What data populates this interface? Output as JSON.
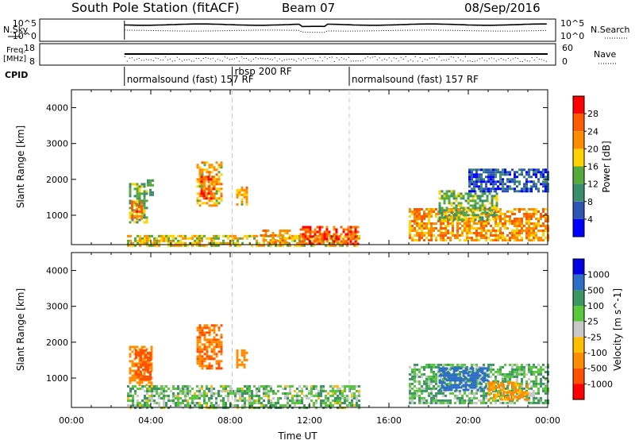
{
  "header": {
    "title": "South Pole Station (fitACF)",
    "beam": "Beam 07",
    "date": "08/Sep/2016"
  },
  "strip": {
    "nsky_label": "N.Sky",
    "nsearch_label": "N.Search",
    "freq_label_1": "Freq.",
    "freq_label_2": "[MHz]",
    "nave_label": "Nave",
    "cpid_label": "CPID",
    "noise_ticks": [
      "10^5",
      "10^0"
    ],
    "freq_ticks": [
      "18",
      "8"
    ],
    "nave_ticks": [
      "60",
      "0"
    ]
  },
  "cpid_segments": [
    {
      "label": "normalsound (fast) 157 RF",
      "start": 2.67
    },
    {
      "label": "rbsp 200 RF",
      "start": 8.1
    },
    {
      "label": "normalsound (fast) 157 RF",
      "start": 14.0
    }
  ],
  "colors": {
    "power": [
      "#0000ff",
      "#2f55b4",
      "#3c8c6e",
      "#55aa3c",
      "#ffd200",
      "#ff8c00",
      "#ff5a00",
      "#ff0000"
    ],
    "velocity": [
      "#0000e0",
      "#2f6ec8",
      "#3c9664",
      "#5ac83c",
      "#c8c8c8",
      "#ffbe00",
      "#ff8c00",
      "#ff5000",
      "#ff0000"
    ]
  },
  "chart_data": [
    {
      "type": "heatmap",
      "name": "power",
      "xlabel": "",
      "ylabel": "Slant Range [km]",
      "xlim": [
        0,
        24
      ],
      "ylim": [
        180,
        4500
      ],
      "yticks": [
        "1000",
        "2000",
        "3000",
        "4000"
      ],
      "colorbar": {
        "label": "Power [dB]",
        "ticks": [
          "4",
          "8",
          "12",
          "16",
          "20",
          "24",
          "28"
        ],
        "range": [
          0,
          32
        ]
      },
      "regions": [
        {
          "t0": 2.9,
          "t1": 3.8,
          "r0": 800,
          "r1": 1900,
          "v": 14
        },
        {
          "t0": 3.0,
          "t1": 3.6,
          "r0": 900,
          "r1": 1400,
          "v": 24
        },
        {
          "t0": 3.8,
          "t1": 4.1,
          "r0": 1600,
          "r1": 2000,
          "v": 10
        },
        {
          "t0": 6.3,
          "t1": 7.6,
          "r0": 1300,
          "r1": 2500,
          "v": 20
        },
        {
          "t0": 6.5,
          "t1": 7.2,
          "r0": 1500,
          "r1": 2100,
          "v": 26
        },
        {
          "t0": 8.3,
          "t1": 8.8,
          "r0": 1300,
          "r1": 1800,
          "v": 20
        },
        {
          "t0": 2.8,
          "t1": 14.5,
          "r0": 180,
          "r1": 450,
          "v": 18
        },
        {
          "t0": 11.5,
          "t1": 14.5,
          "r0": 200,
          "r1": 700,
          "v": 26
        },
        {
          "t0": 9.5,
          "t1": 11.0,
          "r0": 250,
          "r1": 600,
          "v": 22
        },
        {
          "t0": 17.0,
          "t1": 24.0,
          "r0": 300,
          "r1": 1200,
          "v": 22
        },
        {
          "t0": 18.5,
          "t1": 21.5,
          "r0": 900,
          "r1": 1700,
          "v": 14
        },
        {
          "t0": 20.0,
          "t1": 24.0,
          "r0": 1700,
          "r1": 2300,
          "v": 6
        }
      ]
    },
    {
      "type": "heatmap",
      "name": "velocity",
      "xlabel": "Time UT",
      "ylabel": "Slant Range [km]",
      "xlim": [
        0,
        24
      ],
      "ylim": [
        180,
        4500
      ],
      "xticks": [
        "00:00",
        "04:00",
        "08:00",
        "12:00",
        "16:00",
        "20:00",
        "00:00"
      ],
      "yticks": [
        "1000",
        "2000",
        "3000",
        "4000"
      ],
      "colorbar": {
        "label": "Velocity [m s^-1]",
        "ticks": [
          "1000",
          "500",
          "100",
          "25",
          "-25",
          "-100",
          "-500",
          "-1000"
        ]
      },
      "regions": [
        {
          "t0": 2.9,
          "t1": 4.0,
          "r0": 800,
          "r1": 1900,
          "v": -300
        },
        {
          "t0": 3.2,
          "t1": 4.0,
          "r0": 1000,
          "r1": 1800,
          "v": -600
        },
        {
          "t0": 6.3,
          "t1": 7.6,
          "r0": 1300,
          "r1": 2500,
          "v": -500
        },
        {
          "t0": 8.3,
          "t1": 8.8,
          "r0": 1300,
          "r1": 1800,
          "v": -300
        },
        {
          "t0": 2.8,
          "t1": 14.5,
          "r0": 180,
          "r1": 800,
          "v": 60
        },
        {
          "t0": 17.0,
          "t1": 24.0,
          "r0": 300,
          "r1": 1400,
          "v": 80
        },
        {
          "t0": 18.5,
          "t1": 21.0,
          "r0": 700,
          "r1": 1300,
          "v": 600
        },
        {
          "t0": 21.0,
          "t1": 23.0,
          "r0": 400,
          "r1": 900,
          "v": -150
        }
      ]
    }
  ]
}
